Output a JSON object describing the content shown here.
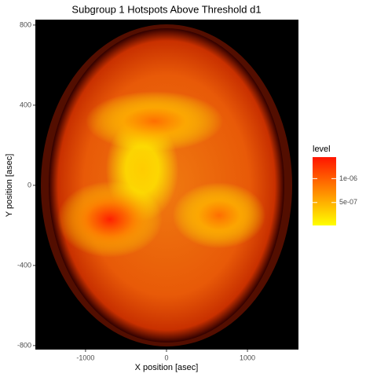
{
  "chart_data": {
    "type": "density2d",
    "title": "Subgroup 1 Hotspots Above Threshold d1",
    "x_label": "X position [asec]",
    "y_label": "Y position [asec]",
    "legend_title": "level",
    "xlim": [
      -1620,
      1630
    ],
    "ylim": [
      -820,
      827
    ],
    "xticks": [
      -1000,
      0,
      1000
    ],
    "yticks": [
      -800,
      -400,
      0,
      400,
      800
    ],
    "level_lim": [
      2e-08,
      1.45e-06
    ],
    "level_ticks": [
      {
        "value": 1e-06,
        "label": "1e-06"
      },
      {
        "value": 5e-07,
        "label": "5e-07"
      }
    ],
    "low_color": "#ffff00",
    "high_color": "#ff1500",
    "hotspots": [
      {
        "x": -300,
        "y": 80,
        "width": 900,
        "height": 520,
        "level": 3e-07
      },
      {
        "x": -150,
        "y": 320,
        "width": 1700,
        "height": 300,
        "level": 9e-07
      },
      {
        "x": 650,
        "y": -150,
        "width": 1150,
        "height": 330,
        "level": 9e-07
      },
      {
        "x": -700,
        "y": -170,
        "width": 1300,
        "height": 380,
        "level": 1.4e-06
      }
    ]
  }
}
